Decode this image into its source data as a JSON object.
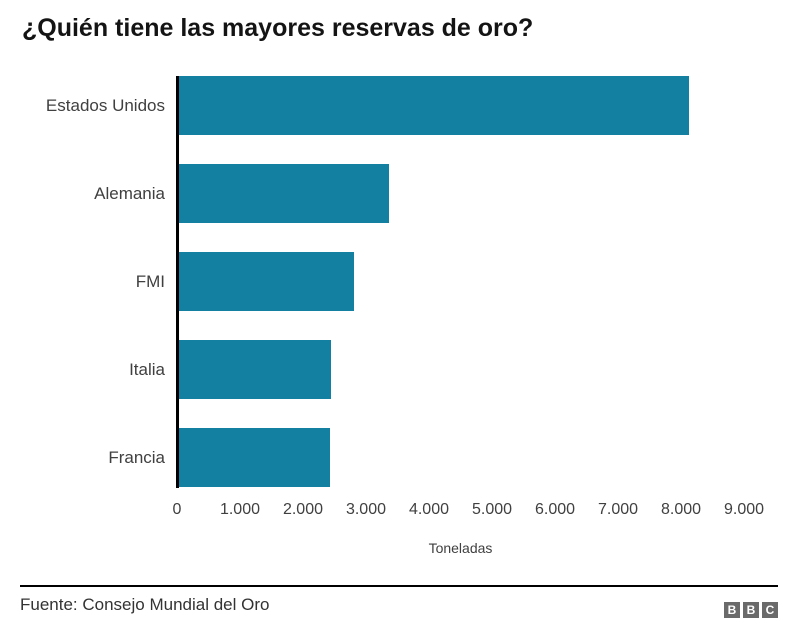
{
  "chart": {
    "title": "¿Quién tiene las mayores reservas de oro?",
    "source": "Fuente: Consejo Mundial del Oro",
    "logo": {
      "letters": [
        "B",
        "B",
        "C"
      ],
      "block_color": "#6a6a6a"
    }
  },
  "chart_data": {
    "type": "bar",
    "orientation": "horizontal",
    "title": "¿Quién tiene las mayores reservas de oro?",
    "categories": [
      "Estados Unidos",
      "Alemania",
      "FMI",
      "Italia",
      "Francia"
    ],
    "values": [
      8133,
      3370,
      2814,
      2452,
      2436
    ],
    "xlabel": "Toneladas",
    "ylabel": "",
    "xlim": [
      0,
      9000
    ],
    "xticks": [
      "0",
      "1.000",
      "2.000",
      "3.000",
      "4.000",
      "5.000",
      "6.000",
      "7.000",
      "8.000",
      "9.000"
    ],
    "grid": false,
    "legend": "none",
    "bar_color": "#1380A1",
    "axis_color": "#000000",
    "source": "Fuente: Consejo Mundial del Oro"
  }
}
